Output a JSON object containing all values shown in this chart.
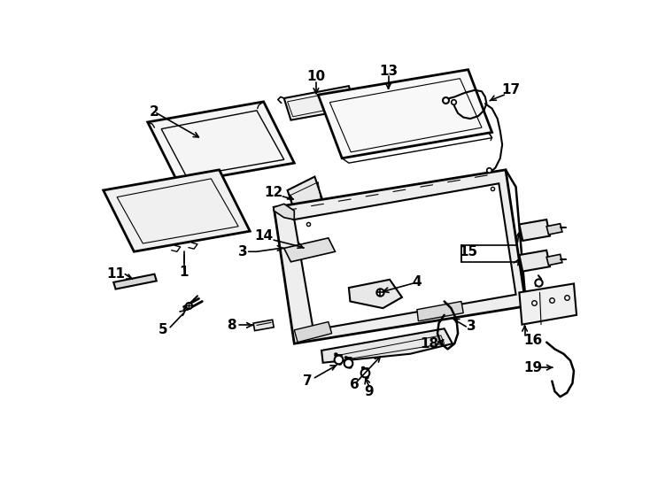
{
  "background_color": "#ffffff",
  "line_color": "#000000",
  "fig_width": 7.34,
  "fig_height": 5.4,
  "dpi": 100,
  "label_fontsize": 11
}
